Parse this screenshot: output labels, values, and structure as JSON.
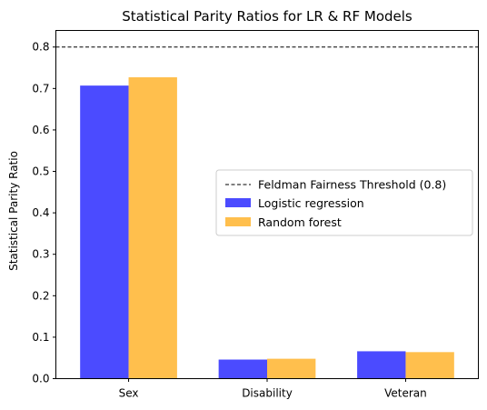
{
  "chart_data": {
    "type": "bar",
    "title": "Statistical Parity Ratios for LR & RF Models",
    "xlabel": "",
    "ylabel": "Statistical Parity Ratio",
    "categories": [
      "Sex",
      "Disability",
      "Veteran"
    ],
    "series": [
      {
        "name": "Logistic regression",
        "values": [
          0.707,
          0.046,
          0.066
        ],
        "color": "#4b4bff"
      },
      {
        "name": "Random forest",
        "values": [
          0.727,
          0.048,
          0.064
        ],
        "color": "#ffbf4d"
      }
    ],
    "ylim": [
      0,
      0.84
    ],
    "yticks": [
      "0.0",
      "0.1",
      "0.2",
      "0.3",
      "0.4",
      "0.5",
      "0.6",
      "0.7",
      "0.8"
    ],
    "threshold": {
      "name": "Feldman Fairness Threshold (0.8)",
      "value": 0.8,
      "color": "#000000"
    },
    "legend": "center-right",
    "grid": false
  }
}
